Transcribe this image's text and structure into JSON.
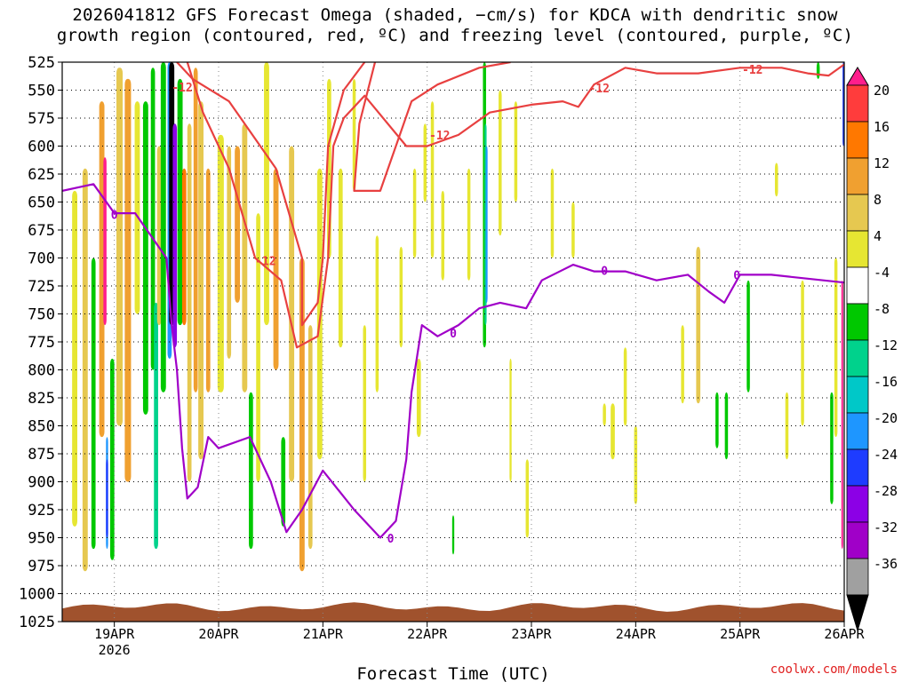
{
  "title": {
    "line1": "2026041812 GFS Forecast Omega (shaded, −cm/s) for KDCA with dendritic snow",
    "line2": "growth region (contoured, red, ºC) and freezing level (contoured, purple, ºC)"
  },
  "credit": "coolwx.com/models",
  "chart_data": {
    "type": "heatmap",
    "title": "2026041812 GFS Forecast Omega (shaded, −cm/s) for KDCA with dendritic snow growth region (contoured, red, ºC) and freezing level (contoured, purple, ºC)",
    "xlabel": "Forecast Time (UTC)",
    "ylabel": "Pressure (hPa)",
    "x_tick_labels": [
      "19APR",
      "20APR",
      "21APR",
      "22APR",
      "23APR",
      "24APR",
      "25APR",
      "26APR"
    ],
    "x_sub_label": "2026",
    "xlim_days": [
      18.5,
      26.0
    ],
    "y_tick_labels": [
      "525",
      "550",
      "575",
      "600",
      "625",
      "650",
      "675",
      "700",
      "725",
      "750",
      "775",
      "800",
      "825",
      "850",
      "875",
      "900",
      "925",
      "950",
      "975",
      "1000",
      "1025"
    ],
    "ylim": [
      525,
      1025
    ],
    "colorbar": {
      "labels": [
        "20",
        "16",
        "12",
        "8",
        "4",
        "-4",
        "-8",
        "-12",
        "-16",
        "-20",
        "-24",
        "-28",
        "-32",
        "-36"
      ],
      "colors": [
        "#ff1e8c",
        "#ff3c3c",
        "#ff7800",
        "#f0a030",
        "#e6c850",
        "#e6e632",
        "#ffffff",
        "#00c800",
        "#00d28c",
        "#00c8c8",
        "#1e96ff",
        "#1e3cff",
        "#8c00e6",
        "#a000c8",
        "#a0a0a0",
        "#000000"
      ]
    },
    "contours": {
      "red_level_label": "-12",
      "purple_level_label": "0"
    },
    "shading_cells": [
      {
        "d": 18.62,
        "w": 0.05,
        "p1": 640,
        "p2": 940,
        "c": "#e6e632"
      },
      {
        "d": 18.72,
        "w": 0.05,
        "p1": 620,
        "p2": 980,
        "c": "#e6c850"
      },
      {
        "d": 18.8,
        "w": 0.04,
        "p1": 700,
        "p2": 960,
        "c": "#00c800"
      },
      {
        "d": 18.88,
        "w": 0.05,
        "p1": 560,
        "p2": 860,
        "c": "#f0a030"
      },
      {
        "d": 18.91,
        "w": 0.03,
        "p1": 610,
        "p2": 760,
        "c": "#ff1e8c"
      },
      {
        "d": 18.93,
        "w": 0.02,
        "p1": 860,
        "p2": 960,
        "c": "#1e96ff"
      },
      {
        "d": 18.93,
        "w": 0.02,
        "p1": 880,
        "p2": 950,
        "c": "#1e3cff"
      },
      {
        "d": 18.98,
        "w": 0.04,
        "p1": 790,
        "p2": 970,
        "c": "#00c800"
      },
      {
        "d": 19.05,
        "w": 0.06,
        "p1": 530,
        "p2": 850,
        "c": "#e6c850"
      },
      {
        "d": 19.13,
        "w": 0.06,
        "p1": 540,
        "p2": 900,
        "c": "#f0a030"
      },
      {
        "d": 19.22,
        "w": 0.05,
        "p1": 560,
        "p2": 750,
        "c": "#e6e632"
      },
      {
        "d": 19.3,
        "w": 0.05,
        "p1": 560,
        "p2": 840,
        "c": "#00c800"
      },
      {
        "d": 19.37,
        "w": 0.04,
        "p1": 530,
        "p2": 800,
        "c": "#00c800"
      },
      {
        "d": 19.4,
        "w": 0.04,
        "p1": 740,
        "p2": 960,
        "c": "#00d28c"
      },
      {
        "d": 19.43,
        "w": 0.04,
        "p1": 600,
        "p2": 760,
        "c": "#e6c850"
      },
      {
        "d": 19.47,
        "w": 0.05,
        "p1": 525,
        "p2": 820,
        "c": "#00c800"
      },
      {
        "d": 19.53,
        "w": 0.04,
        "p1": 525,
        "p2": 790,
        "c": "#1e96ff"
      },
      {
        "d": 19.55,
        "w": 0.05,
        "p1": 525,
        "p2": 760,
        "c": "#000000"
      },
      {
        "d": 19.58,
        "w": 0.04,
        "p1": 580,
        "p2": 780,
        "c": "#8c00e6"
      },
      {
        "d": 19.63,
        "w": 0.05,
        "p1": 540,
        "p2": 760,
        "c": "#00c800"
      },
      {
        "d": 19.67,
        "w": 0.04,
        "p1": 620,
        "p2": 760,
        "c": "#ff7800"
      },
      {
        "d": 19.72,
        "w": 0.04,
        "p1": 580,
        "p2": 900,
        "c": "#e6c850"
      },
      {
        "d": 19.78,
        "w": 0.04,
        "p1": 530,
        "p2": 820,
        "c": "#f0a030"
      },
      {
        "d": 19.83,
        "w": 0.05,
        "p1": 560,
        "p2": 880,
        "c": "#e6c850"
      },
      {
        "d": 19.9,
        "w": 0.04,
        "p1": 620,
        "p2": 820,
        "c": "#f0a030"
      },
      {
        "d": 20.02,
        "w": 0.06,
        "p1": 590,
        "p2": 820,
        "c": "#e6e632"
      },
      {
        "d": 20.1,
        "w": 0.04,
        "p1": 600,
        "p2": 790,
        "c": "#e6c850"
      },
      {
        "d": 20.18,
        "w": 0.05,
        "p1": 600,
        "p2": 740,
        "c": "#f0a030"
      },
      {
        "d": 20.25,
        "w": 0.05,
        "p1": 580,
        "p2": 820,
        "c": "#e6c850"
      },
      {
        "d": 20.31,
        "w": 0.04,
        "p1": 820,
        "p2": 960,
        "c": "#00c800"
      },
      {
        "d": 20.38,
        "w": 0.04,
        "p1": 660,
        "p2": 900,
        "c": "#e6e632"
      },
      {
        "d": 20.46,
        "w": 0.05,
        "p1": 525,
        "p2": 760,
        "c": "#e6e632"
      },
      {
        "d": 20.55,
        "w": 0.05,
        "p1": 620,
        "p2": 800,
        "c": "#f0a030"
      },
      {
        "d": 20.62,
        "w": 0.04,
        "p1": 860,
        "p2": 940,
        "c": "#00c800"
      },
      {
        "d": 20.7,
        "w": 0.05,
        "p1": 600,
        "p2": 900,
        "c": "#e6c850"
      },
      {
        "d": 20.8,
        "w": 0.05,
        "p1": 700,
        "p2": 980,
        "c": "#f0a030"
      },
      {
        "d": 20.88,
        "w": 0.04,
        "p1": 760,
        "p2": 960,
        "c": "#e6c850"
      },
      {
        "d": 20.97,
        "w": 0.05,
        "p1": 620,
        "p2": 880,
        "c": "#e6e632"
      },
      {
        "d": 21.06,
        "w": 0.04,
        "p1": 540,
        "p2": 700,
        "c": "#e6e632"
      },
      {
        "d": 21.17,
        "w": 0.04,
        "p1": 620,
        "p2": 780,
        "c": "#e6e632"
      },
      {
        "d": 21.3,
        "w": 0.03,
        "p1": 540,
        "p2": 640,
        "c": "#e6e632"
      },
      {
        "d": 21.4,
        "w": 0.03,
        "p1": 760,
        "p2": 900,
        "c": "#e6e632"
      },
      {
        "d": 21.52,
        "w": 0.03,
        "p1": 680,
        "p2": 820,
        "c": "#e6e632"
      },
      {
        "d": 21.75,
        "w": 0.03,
        "p1": 690,
        "p2": 780,
        "c": "#e6e632"
      },
      {
        "d": 21.88,
        "w": 0.03,
        "p1": 620,
        "p2": 700,
        "c": "#e6e632"
      },
      {
        "d": 21.92,
        "w": 0.04,
        "p1": 790,
        "p2": 860,
        "c": "#e6e632"
      },
      {
        "d": 21.98,
        "w": 0.03,
        "p1": 580,
        "p2": 650,
        "c": "#e6e632"
      },
      {
        "d": 22.05,
        "w": 0.03,
        "p1": 560,
        "p2": 700,
        "c": "#e6e632"
      },
      {
        "d": 22.15,
        "w": 0.03,
        "p1": 640,
        "p2": 720,
        "c": "#e6e632"
      },
      {
        "d": 22.25,
        "w": 0.02,
        "p1": 930,
        "p2": 965,
        "c": "#00c800"
      },
      {
        "d": 22.4,
        "w": 0.03,
        "p1": 620,
        "p2": 720,
        "c": "#e6e632"
      },
      {
        "d": 22.55,
        "w": 0.03,
        "p1": 525,
        "p2": 780,
        "c": "#00c800"
      },
      {
        "d": 22.56,
        "w": 0.02,
        "p1": 580,
        "p2": 760,
        "c": "#00d28c"
      },
      {
        "d": 22.57,
        "w": 0.015,
        "p1": 600,
        "p2": 740,
        "c": "#1e96ff"
      },
      {
        "d": 22.7,
        "w": 0.03,
        "p1": 550,
        "p2": 680,
        "c": "#e6e632"
      },
      {
        "d": 22.8,
        "w": 0.02,
        "p1": 790,
        "p2": 900,
        "c": "#e6e632"
      },
      {
        "d": 22.85,
        "w": 0.03,
        "p1": 560,
        "p2": 650,
        "c": "#e6e632"
      },
      {
        "d": 22.96,
        "w": 0.03,
        "p1": 880,
        "p2": 950,
        "c": "#e6e632"
      },
      {
        "d": 23.2,
        "w": 0.03,
        "p1": 620,
        "p2": 700,
        "c": "#e6e632"
      },
      {
        "d": 23.4,
        "w": 0.03,
        "p1": 650,
        "p2": 700,
        "c": "#e6e632"
      },
      {
        "d": 23.7,
        "w": 0.03,
        "p1": 830,
        "p2": 850,
        "c": "#e6e632"
      },
      {
        "d": 23.78,
        "w": 0.04,
        "p1": 830,
        "p2": 880,
        "c": "#e6e632"
      },
      {
        "d": 23.9,
        "w": 0.03,
        "p1": 780,
        "p2": 850,
        "c": "#e6e632"
      },
      {
        "d": 24.0,
        "w": 0.03,
        "p1": 850,
        "p2": 920,
        "c": "#e6e632"
      },
      {
        "d": 24.45,
        "w": 0.03,
        "p1": 760,
        "p2": 830,
        "c": "#e6e632"
      },
      {
        "d": 24.6,
        "w": 0.04,
        "p1": 690,
        "p2": 830,
        "c": "#e6c850"
      },
      {
        "d": 24.78,
        "w": 0.03,
        "p1": 820,
        "p2": 870,
        "c": "#00c800"
      },
      {
        "d": 24.87,
        "w": 0.03,
        "p1": 820,
        "p2": 880,
        "c": "#00c800"
      },
      {
        "d": 25.08,
        "w": 0.03,
        "p1": 720,
        "p2": 820,
        "c": "#00c800"
      },
      {
        "d": 25.35,
        "w": 0.03,
        "p1": 615,
        "p2": 645,
        "c": "#e6e632"
      },
      {
        "d": 25.45,
        "w": 0.03,
        "p1": 820,
        "p2": 880,
        "c": "#e6e632"
      },
      {
        "d": 25.6,
        "w": 0.03,
        "p1": 720,
        "p2": 850,
        "c": "#e6e632"
      },
      {
        "d": 25.75,
        "w": 0.03,
        "p1": 525,
        "p2": 540,
        "c": "#00c800"
      },
      {
        "d": 25.88,
        "w": 0.03,
        "p1": 820,
        "p2": 920,
        "c": "#00c800"
      },
      {
        "d": 25.92,
        "w": 0.03,
        "p1": 700,
        "p2": 860,
        "c": "#e6e632"
      },
      {
        "d": 25.98,
        "w": 0.015,
        "p1": 720,
        "p2": 960,
        "c": "#ff1e8c"
      },
      {
        "d": 25.99,
        "w": 0.012,
        "p1": 525,
        "p2": 600,
        "c": "#1e3cff"
      }
    ],
    "red_contour": [
      [
        19.6,
        525
      ],
      [
        19.75,
        540
      ],
      [
        20.1,
        560
      ],
      [
        20.55,
        620
      ],
      [
        20.8,
        700
      ],
      [
        20.8,
        760
      ],
      [
        20.95,
        740
      ],
      [
        21.0,
        700
      ],
      [
        21.05,
        600
      ],
      [
        21.2,
        550
      ],
      [
        21.4,
        525
      ]
    ],
    "red_contour_2": [
      [
        19.7,
        525
      ],
      [
        19.85,
        570
      ],
      [
        20.1,
        620
      ],
      [
        20.35,
        700
      ],
      [
        20.6,
        720
      ],
      [
        20.75,
        780
      ],
      [
        20.95,
        770
      ],
      [
        21.05,
        700
      ],
      [
        21.1,
        600
      ],
      [
        21.2,
        575
      ],
      [
        21.4,
        555
      ],
      [
        21.8,
        600
      ],
      [
        22.0,
        600
      ],
      [
        22.3,
        590
      ],
      [
        22.6,
        570
      ],
      [
        23.0,
        563
      ],
      [
        23.3,
        560
      ],
      [
        23.45,
        565
      ],
      [
        23.6,
        545
      ],
      [
        23.9,
        530
      ],
      [
        24.2,
        535
      ],
      [
        24.6,
        535
      ],
      [
        25.0,
        530
      ],
      [
        25.4,
        530
      ],
      [
        25.65,
        535
      ],
      [
        25.85,
        537
      ],
      [
        26.0,
        527
      ]
    ],
    "red_contour_3": [
      [
        21.5,
        525
      ],
      [
        21.35,
        580
      ],
      [
        21.3,
        640
      ],
      [
        21.55,
        640
      ],
      [
        21.7,
        600
      ],
      [
        21.85,
        560
      ],
      [
        22.1,
        545
      ],
      [
        22.5,
        530
      ],
      [
        22.8,
        525
      ]
    ],
    "purple_contour": [
      [
        18.5,
        640
      ],
      [
        18.8,
        634
      ],
      [
        19.0,
        660
      ],
      [
        19.2,
        660
      ],
      [
        19.35,
        680
      ],
      [
        19.5,
        700
      ],
      [
        19.55,
        760
      ],
      [
        19.6,
        800
      ],
      [
        19.65,
        870
      ],
      [
        19.7,
        915
      ],
      [
        19.8,
        905
      ],
      [
        19.9,
        860
      ],
      [
        20.0,
        870
      ],
      [
        20.3,
        860
      ],
      [
        20.5,
        900
      ],
      [
        20.65,
        945
      ],
      [
        20.8,
        925
      ],
      [
        21.0,
        890
      ],
      [
        21.3,
        925
      ],
      [
        21.55,
        950
      ],
      [
        21.7,
        935
      ],
      [
        21.8,
        880
      ],
      [
        21.85,
        820
      ],
      [
        21.95,
        760
      ],
      [
        22.1,
        770
      ],
      [
        22.3,
        760
      ],
      [
        22.5,
        745
      ],
      [
        22.7,
        740
      ],
      [
        22.95,
        745
      ],
      [
        23.1,
        720
      ],
      [
        23.4,
        706
      ],
      [
        23.6,
        712
      ],
      [
        23.9,
        712
      ],
      [
        24.2,
        720
      ],
      [
        24.5,
        715
      ],
      [
        24.7,
        730
      ],
      [
        24.85,
        740
      ],
      [
        25.0,
        715
      ],
      [
        25.3,
        715
      ],
      [
        25.6,
        718
      ],
      [
        25.8,
        720
      ],
      [
        26.0,
        722
      ]
    ],
    "terrain_top_hpa": 1012
  }
}
